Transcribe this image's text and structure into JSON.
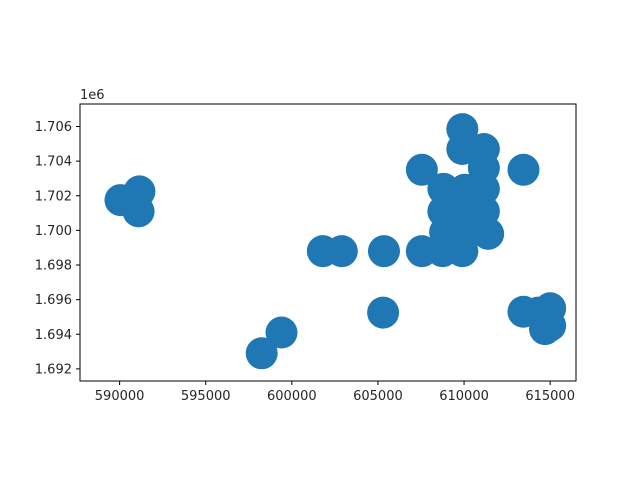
{
  "chart_data": {
    "type": "scatter",
    "title": "",
    "xlabel": "",
    "ylabel": "",
    "y_offset_label": "1e6",
    "xlim": [
      587700,
      616500
    ],
    "ylim": [
      1691300,
      1707300
    ],
    "y_scale_factor": 1000000,
    "x_ticks": [
      590000,
      595000,
      600000,
      605000,
      610000,
      615000
    ],
    "y_ticks": [
      1692000,
      1694000,
      1696000,
      1698000,
      1700000,
      1702000,
      1704000,
      1706000
    ],
    "x_tick_labels": [
      "590000",
      "595000",
      "600000",
      "605000",
      "610000",
      "615000"
    ],
    "y_tick_labels": [
      "1.692",
      "1.694",
      "1.696",
      "1.698",
      "1.700",
      "1.702",
      "1.704",
      "1.706"
    ],
    "grid": false,
    "marker_color": "#1f77b4",
    "points": [
      {
        "x": 590050,
        "y": 1701750
      },
      {
        "x": 591150,
        "y": 1702250
      },
      {
        "x": 591100,
        "y": 1701100
      },
      {
        "x": 598250,
        "y": 1692900
      },
      {
        "x": 599400,
        "y": 1694100
      },
      {
        "x": 601800,
        "y": 1698800
      },
      {
        "x": 602900,
        "y": 1698800
      },
      {
        "x": 605350,
        "y": 1698800
      },
      {
        "x": 605300,
        "y": 1695250
      },
      {
        "x": 607550,
        "y": 1703500
      },
      {
        "x": 607550,
        "y": 1698800
      },
      {
        "x": 608800,
        "y": 1702400
      },
      {
        "x": 608800,
        "y": 1701100
      },
      {
        "x": 608900,
        "y": 1699900
      },
      {
        "x": 608750,
        "y": 1698800
      },
      {
        "x": 609900,
        "y": 1705850
      },
      {
        "x": 609900,
        "y": 1704700
      },
      {
        "x": 610050,
        "y": 1702350
      },
      {
        "x": 610000,
        "y": 1701100
      },
      {
        "x": 610000,
        "y": 1699900
      },
      {
        "x": 609900,
        "y": 1698800
      },
      {
        "x": 611150,
        "y": 1704700
      },
      {
        "x": 611150,
        "y": 1703600
      },
      {
        "x": 611150,
        "y": 1702400
      },
      {
        "x": 611150,
        "y": 1701100
      },
      {
        "x": 610600,
        "y": 1700350
      },
      {
        "x": 611400,
        "y": 1699800
      },
      {
        "x": 613450,
        "y": 1703500
      },
      {
        "x": 613450,
        "y": 1695300
      },
      {
        "x": 614300,
        "y": 1695250
      },
      {
        "x": 615000,
        "y": 1695500
      },
      {
        "x": 615000,
        "y": 1694500
      },
      {
        "x": 614700,
        "y": 1694300
      }
    ]
  }
}
